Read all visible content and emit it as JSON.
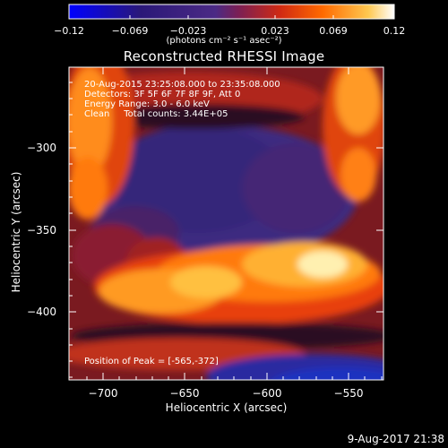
{
  "colorbar": {
    "ticks": [
      "−0.12",
      "−0.069",
      "−0.023",
      "0.023",
      "0.069",
      "0.12"
    ],
    "units_label": "(photons cm⁻² s⁻¹ asec⁻²)",
    "colors": [
      "#0000ff",
      "#2a1a7a",
      "#3b2a80",
      "#6a2b78",
      "#c0281a",
      "#ff4500",
      "#ff9a20",
      "#ffffff"
    ]
  },
  "image": {
    "title": "Reconstructed RHESSI Image",
    "info_lines": [
      "20-Aug-2015 23:25:08.000 to 23:35:08.000",
      "Detectors: 3F 5F 6F 7F 8F 9F, Att 0",
      "Energy Range: 3.0 - 6.0 keV",
      "Clean     Total counts: 3.44E+05"
    ],
    "peak_label": "Position of Peak = [-565,-372]",
    "x_axis": {
      "label": "Heliocentric X (arcsec)",
      "ticks": [
        "−700",
        "−650",
        "−600",
        "−550"
      ],
      "range": [
        -721,
        -529
      ]
    },
    "y_axis": {
      "label": "Heliocentric Y (arcsec)",
      "ticks": [
        "−300",
        "−350",
        "−400"
      ],
      "range": [
        -443,
        -268
      ]
    }
  },
  "footer": {
    "timestamp": "9-Aug-2017 21:38"
  }
}
